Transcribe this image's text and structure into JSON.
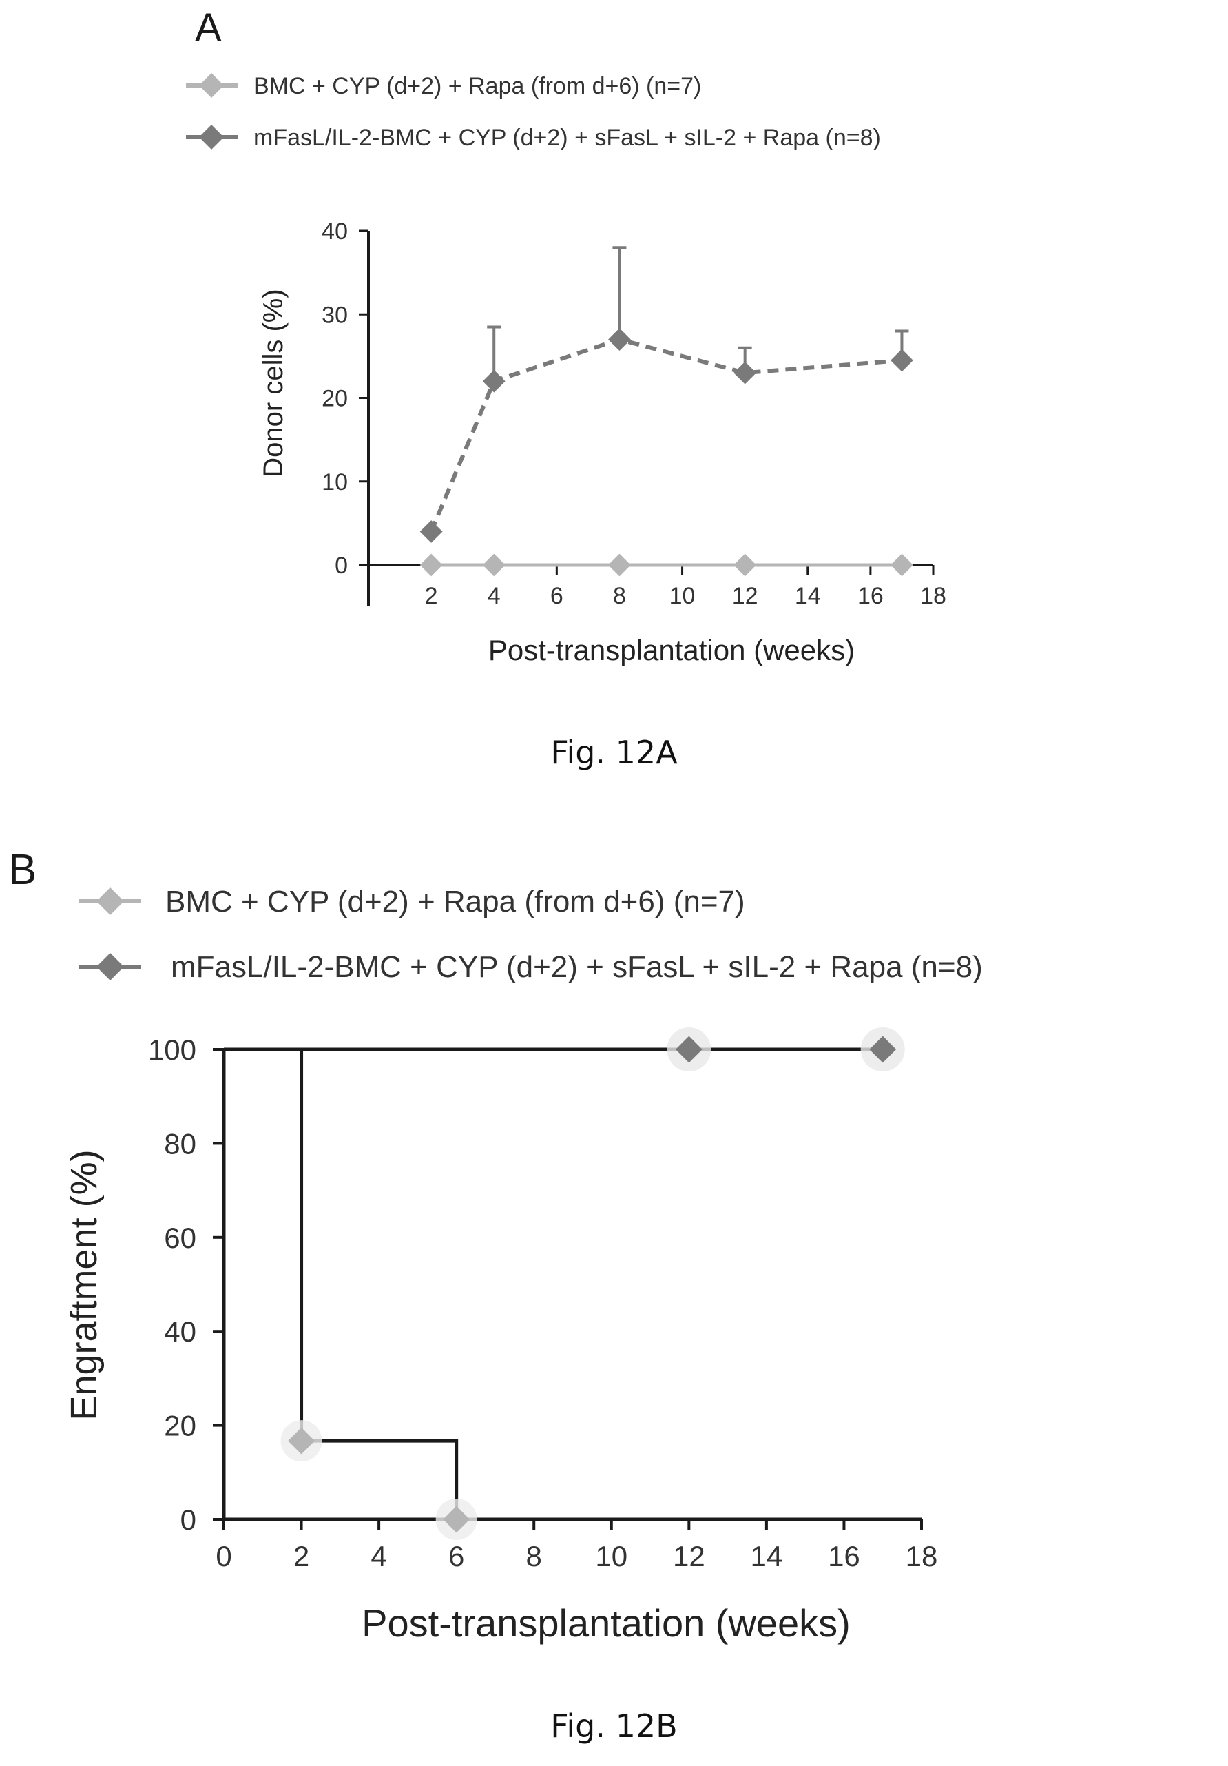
{
  "figure_a": {
    "panel_letter": "A",
    "caption": "Fig. 12A",
    "legend": [
      "BMC + CYP (d+2) + Rapa (from d+6) (n=7)",
      "mFasL/IL-2-BMC + CYP (d+2) + sFasL + sIL-2 + Rapa (n=8)"
    ]
  },
  "figure_b": {
    "panel_letter": "B",
    "caption": "Fig. 12B",
    "legend": [
      "BMC + CYP (d+2) + Rapa (from d+6) (n=7)",
      "mFasL/IL-2-BMC + CYP (d+2) + sFasL + sIL-2 + Rapa (n=8)"
    ]
  },
  "colors": {
    "series_control": "#b5b5b5",
    "series_treated": "#7a7a7a",
    "axis": "#1a1a1a"
  },
  "chart_data": [
    {
      "type": "line",
      "xlabel": "Post-transplantation (weeks)",
      "ylabel": "Donor cells (%)",
      "xlim": [
        0,
        18
      ],
      "ylim": [
        0,
        40
      ],
      "xticks": [
        2,
        4,
        6,
        8,
        10,
        12,
        14,
        16,
        18
      ],
      "yticks": [
        0,
        10,
        20,
        30,
        40
      ],
      "grid": false,
      "legend_position": "top",
      "series": [
        {
          "name": "BMC + CYP (d+2) + Rapa (from d+6) (n=7)",
          "x": [
            2,
            4,
            8,
            12,
            17
          ],
          "y": [
            0,
            0,
            0,
            0,
            0
          ],
          "line_style": "solid"
        },
        {
          "name": "mFasL/IL-2-BMC + CYP (d+2) + sFasL + sIL-2 + Rapa (n=8)",
          "x": [
            2,
            4,
            8,
            12,
            17
          ],
          "y": [
            4,
            22,
            27,
            23,
            24.5
          ],
          "error_upper": [
            null,
            28.5,
            38,
            26,
            28
          ],
          "line_style": "dashed"
        }
      ]
    },
    {
      "type": "line",
      "step": true,
      "xlabel": "Post-transplantation (weeks)",
      "ylabel": "Engraftment (%)",
      "xlim": [
        0,
        18
      ],
      "ylim": [
        0,
        100
      ],
      "xticks": [
        0,
        2,
        4,
        6,
        8,
        10,
        12,
        14,
        16,
        18
      ],
      "yticks": [
        0,
        20,
        40,
        60,
        80,
        100
      ],
      "grid": false,
      "legend_position": "top",
      "series": [
        {
          "name": "BMC + CYP (d+2) + Rapa (from d+6) (n=7)",
          "x": [
            0,
            2,
            6
          ],
          "y": [
            100,
            16.7,
            0
          ],
          "markers_x": [
            2,
            6
          ],
          "markers_y": [
            16.7,
            0
          ]
        },
        {
          "name": "mFasL/IL-2-BMC + CYP (d+2) + sFasL + sIL-2 + Rapa (n=8)",
          "x": [
            0,
            17
          ],
          "y": [
            100,
            100
          ],
          "markers_x": [
            12,
            17
          ],
          "markers_y": [
            100,
            100
          ]
        }
      ]
    }
  ]
}
